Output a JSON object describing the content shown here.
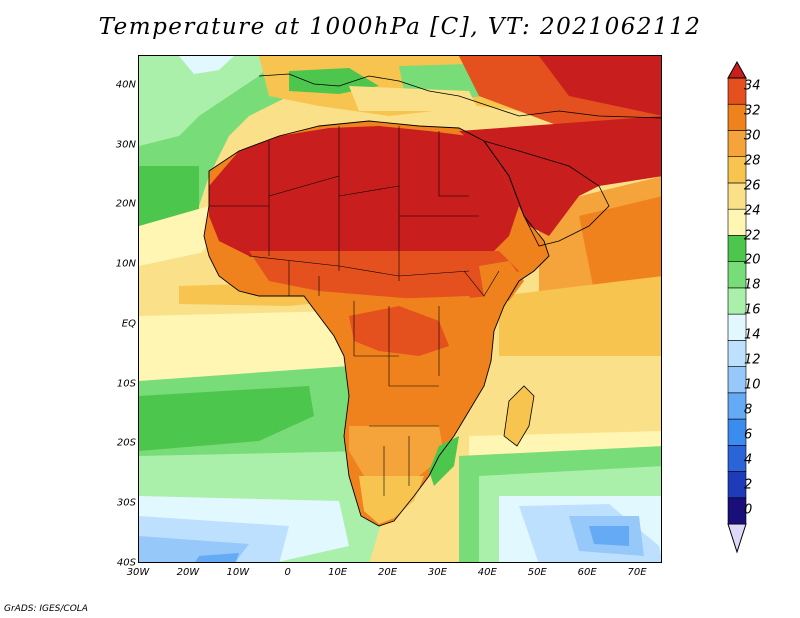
{
  "title": "Temperature at 1000hPa [C], VT: 2021062112",
  "credit": "GrADS: IGES/COLA",
  "map": {
    "projection": "lat-lon",
    "lon_range": [
      -30,
      75
    ],
    "lat_range": [
      -40,
      45
    ],
    "field": "temperature at 1000hPa",
    "units": "C",
    "region": "Africa",
    "background_color": "#f0e070"
  },
  "axes": {
    "lat_labels": [
      {
        "lat": 40,
        "text": "40N"
      },
      {
        "lat": 30,
        "text": "30N"
      },
      {
        "lat": 20,
        "text": "20N"
      },
      {
        "lat": 10,
        "text": "10N"
      },
      {
        "lat": 0,
        "text": "EQ"
      },
      {
        "lat": -10,
        "text": "10S"
      },
      {
        "lat": -20,
        "text": "20S"
      },
      {
        "lat": -30,
        "text": "30S"
      },
      {
        "lat": -40,
        "text": "40S"
      }
    ],
    "lon_labels": [
      {
        "lon": -30,
        "text": "30W"
      },
      {
        "lon": -20,
        "text": "20W"
      },
      {
        "lon": -10,
        "text": "10W"
      },
      {
        "lon": 0,
        "text": "0"
      },
      {
        "lon": 10,
        "text": "10E"
      },
      {
        "lon": 20,
        "text": "20E"
      },
      {
        "lon": 30,
        "text": "30E"
      },
      {
        "lon": 40,
        "text": "40E"
      },
      {
        "lon": 50,
        "text": "50E"
      },
      {
        "lon": 60,
        "text": "60E"
      },
      {
        "lon": 70,
        "text": "70E"
      }
    ]
  },
  "colorbar": {
    "labels": [
      "34",
      "32",
      "30",
      "28",
      "26",
      "24",
      "22",
      "20",
      "18",
      "16",
      "14",
      "12",
      "10",
      "8",
      "6",
      "4",
      "2",
      "0"
    ],
    "colors": [
      "#1a0f7a",
      "#1e3cba",
      "#2a64d8",
      "#3c8cf0",
      "#64aaf5",
      "#96c8fa",
      "#bee0ff",
      "#e2f8ff",
      "#aaf0aa",
      "#78dc78",
      "#4cc64c",
      "#fff6b4",
      "#fae088",
      "#f8c450",
      "#f4a43a",
      "#f0821e",
      "#e4501e",
      "#c81e1e"
    ]
  }
}
